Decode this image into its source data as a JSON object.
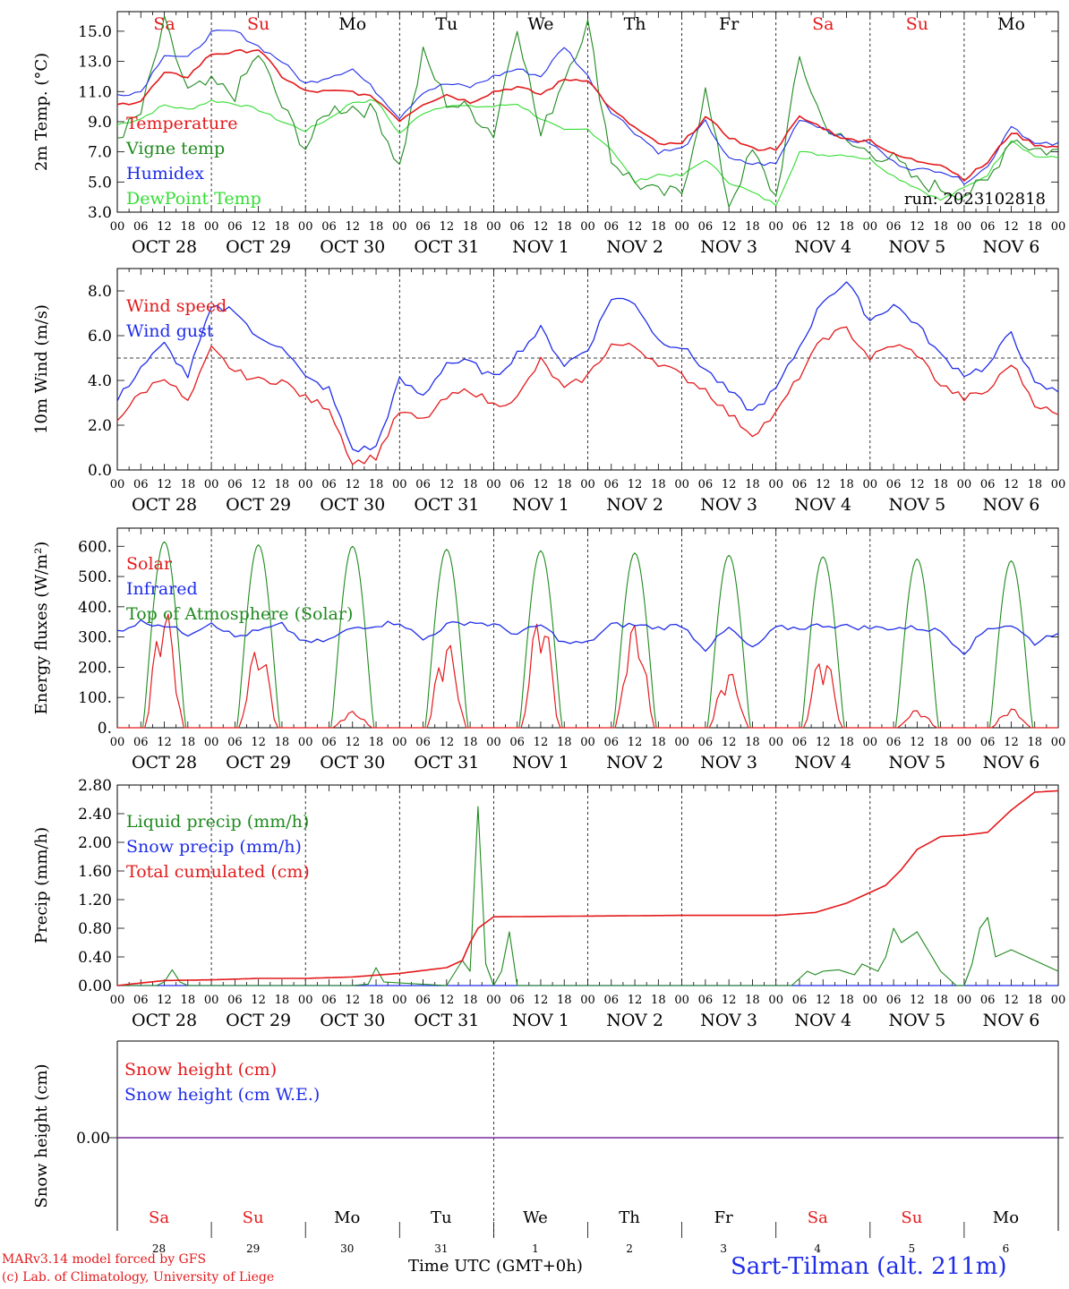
{
  "colors": {
    "red": "#e31a1c",
    "darkgreen": "#1f8a1f",
    "blue": "#1f2de8",
    "lightgreen": "#33dd33",
    "purple": "#7a2a9a",
    "black": "#000000"
  },
  "days": [
    {
      "weekday": "Sa",
      "date": "OCT 28",
      "daynum": "28",
      "weekend": true
    },
    {
      "weekday": "Su",
      "date": "OCT 29",
      "daynum": "29",
      "weekend": true
    },
    {
      "weekday": "Mo",
      "date": "OCT 30",
      "daynum": "30",
      "weekend": false
    },
    {
      "weekday": "Tu",
      "date": "OCT 31",
      "daynum": "31",
      "weekend": false
    },
    {
      "weekday": "We",
      "date": "NOV  1",
      "daynum": "1",
      "weekend": false
    },
    {
      "weekday": "Th",
      "date": "NOV  2",
      "daynum": "2",
      "weekend": false
    },
    {
      "weekday": "Fr",
      "date": "NOV  3",
      "daynum": "3",
      "weekend": false
    },
    {
      "weekday": "Sa",
      "date": "NOV  4",
      "daynum": "4",
      "weekend": true
    },
    {
      "weekday": "Su",
      "date": "NOV  5",
      "daynum": "5",
      "weekend": true
    },
    {
      "weekday": "Mo",
      "date": "NOV  6",
      "daynum": "6",
      "weekend": false
    }
  ],
  "hour_labels": [
    "00",
    "06",
    "12",
    "18"
  ],
  "footer": {
    "model": "MARv3.14 model forced by GFS",
    "credit": "(c) Lab. of Climatology, University of Liege",
    "xlabel": "Time UTC (GMT+0h)",
    "location": "Sart-Tilman (alt. 211m)"
  },
  "chart_data": [
    {
      "type": "line",
      "ylabel": "2m Temp. (°C)",
      "ylim": [
        3.0,
        16.3
      ],
      "yticks": [
        "3.0",
        "5.0",
        "7.0",
        "9.0",
        "11.0",
        "13.0",
        "15.0"
      ],
      "ytick_values": [
        3,
        5,
        7,
        9,
        11,
        13,
        15
      ],
      "annotation": "run: 2023102818",
      "x_unit": "hours since 2023-10-28 00 UTC",
      "x": [
        0,
        6,
        12,
        18,
        24,
        30,
        36,
        42,
        48,
        54,
        60,
        66,
        72,
        78,
        84,
        90,
        96,
        102,
        108,
        114,
        120,
        126,
        132,
        138,
        144,
        150,
        156,
        162,
        168,
        174,
        180,
        186,
        192,
        198,
        204,
        210,
        216,
        222,
        228,
        234,
        240
      ],
      "series": [
        {
          "name": "Temperature",
          "color": "red",
          "values": [
            10.1,
            10.4,
            12.2,
            12.0,
            13.5,
            13.6,
            13.8,
            12.0,
            11.0,
            11.0,
            11.0,
            10.5,
            9.1,
            10.2,
            10.8,
            10.3,
            11.0,
            11.3,
            10.8,
            11.8,
            11.8,
            9.8,
            8.6,
            7.5,
            7.5,
            9.3,
            8.0,
            7.2,
            7.2,
            9.3,
            8.6,
            7.8,
            7.8,
            6.8,
            6.4,
            6.2,
            5.2,
            6.3,
            8.3,
            7.5,
            7.3
          ]
        },
        {
          "name": "Vigne temp",
          "color": "darkgreen",
          "values": [
            8.0,
            9.5,
            15.5,
            11.0,
            11.5,
            10.8,
            13.5,
            10.0,
            7.3,
            9.8,
            10.0,
            9.6,
            6.0,
            13.5,
            10.3,
            9.8,
            8.2,
            15.5,
            8.0,
            12.0,
            15.5,
            6.5,
            5.0,
            4.2,
            4.3,
            11.0,
            3.5,
            7.0,
            4.0,
            13.2,
            9.0,
            7.5,
            7.0,
            6.5,
            5.0,
            4.6,
            4.2,
            5.0,
            8.0,
            7.2,
            7.0
          ]
        },
        {
          "name": "Humidex",
          "color": "blue",
          "values": [
            10.8,
            11.0,
            13.5,
            13.2,
            14.9,
            15.0,
            14.0,
            13.0,
            11.5,
            12.0,
            12.5,
            11.0,
            9.3,
            11.0,
            11.5,
            11.3,
            12.0,
            12.5,
            12.0,
            14.0,
            12.0,
            9.7,
            8.3,
            7.0,
            7.2,
            9.0,
            6.5,
            6.2,
            6.2,
            9.2,
            8.6,
            7.8,
            7.6,
            6.3,
            5.8,
            5.8,
            5.0,
            6.0,
            8.8,
            7.5,
            7.5
          ]
        },
        {
          "name": "DewPoint Temp",
          "color": "lightgreen",
          "values": [
            8.8,
            9.2,
            10.1,
            9.8,
            10.4,
            10.2,
            9.8,
            9.0,
            8.4,
            9.2,
            10.3,
            10.4,
            8.2,
            9.6,
            10.1,
            10.0,
            10.0,
            10.2,
            9.2,
            8.4,
            8.5,
            7.2,
            5.0,
            5.5,
            5.4,
            6.5,
            5.0,
            4.3,
            3.5,
            7.0,
            6.8,
            6.8,
            6.5,
            5.4,
            4.6,
            3.8,
            4.6,
            5.5,
            7.8,
            6.7,
            6.6
          ]
        }
      ]
    },
    {
      "type": "line",
      "ylabel": "10m Wind (m/s)",
      "ylim": [
        0,
        9.0
      ],
      "yticks": [
        "0.0",
        "2.0",
        "4.0",
        "6.0",
        "8.0"
      ],
      "ytick_values": [
        0,
        2,
        4,
        6,
        8
      ],
      "reference_line": 5.0,
      "x_unit": "hours since 2023-10-28 00 UTC",
      "x": [
        0,
        6,
        12,
        18,
        24,
        30,
        36,
        42,
        48,
        54,
        60,
        66,
        72,
        78,
        84,
        90,
        96,
        102,
        108,
        114,
        120,
        126,
        132,
        138,
        144,
        150,
        156,
        162,
        168,
        174,
        180,
        186,
        192,
        198,
        204,
        210,
        216,
        222,
        228,
        234,
        240
      ],
      "series": [
        {
          "name": "Wind speed",
          "color": "red",
          "values": [
            2.3,
            3.4,
            4.2,
            3.0,
            5.4,
            4.4,
            4.0,
            4.0,
            3.2,
            2.8,
            0.3,
            0.6,
            2.6,
            2.2,
            3.2,
            3.6,
            2.9,
            3.2,
            4.9,
            3.6,
            4.2,
            5.6,
            5.5,
            4.8,
            4.2,
            3.6,
            2.5,
            1.6,
            2.5,
            4.2,
            5.9,
            6.3,
            5.0,
            5.6,
            5.2,
            3.8,
            3.2,
            3.5,
            4.8,
            3.0,
            2.4
          ]
        },
        {
          "name": "Wind gust",
          "color": "blue",
          "values": [
            3.1,
            4.6,
            5.6,
            4.2,
            7.2,
            7.2,
            5.8,
            5.6,
            4.1,
            3.6,
            0.9,
            1.0,
            4.0,
            3.3,
            4.8,
            4.8,
            4.1,
            5.2,
            6.3,
            4.7,
            5.4,
            7.7,
            7.5,
            5.8,
            5.5,
            4.5,
            3.5,
            2.6,
            3.6,
            5.5,
            7.6,
            8.4,
            6.7,
            7.4,
            6.5,
            5.1,
            4.3,
            4.6,
            6.2,
            3.8,
            3.5
          ]
        }
      ]
    },
    {
      "type": "line",
      "ylabel": "Energy fluxes (W/m²)",
      "ylim": [
        0,
        660
      ],
      "yticks": [
        "0.",
        "100.",
        "200.",
        "300.",
        "400.",
        "500.",
        "600."
      ],
      "ytick_values": [
        0,
        100,
        200,
        300,
        400,
        500,
        600
      ],
      "x_unit": "hours since 2023-10-28 00 UTC",
      "solar_peaks": [
        400,
        275,
        55,
        290,
        390,
        350,
        190,
        250,
        60,
        65
      ],
      "toa_peaks": [
        615,
        605,
        600,
        590,
        585,
        578,
        570,
        565,
        558,
        552
      ],
      "ir": {
        "x": [
          0,
          6,
          12,
          18,
          24,
          30,
          36,
          42,
          48,
          54,
          60,
          66,
          72,
          78,
          84,
          90,
          96,
          102,
          108,
          114,
          120,
          126,
          132,
          138,
          144,
          150,
          156,
          162,
          168,
          174,
          180,
          186,
          192,
          198,
          204,
          210,
          216,
          222,
          228,
          234,
          240
        ],
        "values": [
          320,
          350,
          340,
          310,
          350,
          300,
          320,
          340,
          280,
          290,
          330,
          340,
          350,
          290,
          340,
          350,
          340,
          310,
          340,
          280,
          280,
          340,
          340,
          330,
          340,
          260,
          330,
          260,
          330,
          330,
          340,
          335,
          330,
          330,
          330,
          320,
          250,
          330,
          340,
          280,
          320
        ]
      },
      "series": [
        {
          "name": "Solar",
          "color": "red"
        },
        {
          "name": "Infrared",
          "color": "blue"
        },
        {
          "name": "Top of Atmosphere (Solar)",
          "color": "darkgreen"
        }
      ]
    },
    {
      "type": "line",
      "ylabel": "Precip (mm/h)",
      "ylim": [
        0,
        2.8
      ],
      "yticks": [
        "0.00",
        "0.40",
        "0.80",
        "1.20",
        "1.60",
        "2.00",
        "2.40",
        "2.80"
      ],
      "ytick_values": [
        0,
        0.4,
        0.8,
        1.2,
        1.6,
        2.0,
        2.4,
        2.8
      ],
      "x_unit": "hours since 2023-10-28 00 UTC",
      "liquid": {
        "x": [
          0,
          10,
          12,
          14,
          16,
          18,
          24,
          60,
          64,
          66,
          68,
          84,
          88,
          90,
          92,
          94,
          96,
          98,
          100,
          102,
          172,
          174,
          176,
          178,
          180,
          184,
          188,
          190,
          194,
          196,
          198,
          200,
          204,
          210,
          214,
          216,
          218,
          220,
          222,
          224,
          228,
          232,
          240
        ],
        "values": [
          0,
          0,
          0.05,
          0.22,
          0.05,
          0,
          0,
          0,
          0.02,
          0.25,
          0.05,
          0,
          0.35,
          0.2,
          2.5,
          0.3,
          0,
          0.2,
          0.75,
          0,
          0,
          0.1,
          0.2,
          0.15,
          0.2,
          0.22,
          0.15,
          0.3,
          0.2,
          0.4,
          0.8,
          0.6,
          0.75,
          0.2,
          0,
          0,
          0.3,
          0.8,
          0.95,
          0.4,
          0.5,
          0.4,
          0.2
        ]
      },
      "cumulated": {
        "x": [
          0,
          12,
          24,
          36,
          48,
          60,
          72,
          84,
          86,
          88,
          90,
          92,
          94,
          96,
          120,
          144,
          168,
          178,
          186,
          192,
          196,
          200,
          204,
          210,
          216,
          222,
          228,
          234,
          240
        ],
        "values": [
          0,
          0.07,
          0.08,
          0.1,
          0.1,
          0.12,
          0.17,
          0.25,
          0.3,
          0.35,
          0.6,
          0.8,
          0.88,
          0.96,
          0.97,
          0.98,
          0.98,
          1.02,
          1.15,
          1.3,
          1.4,
          1.62,
          1.9,
          2.08,
          2.1,
          2.14,
          2.45,
          2.7,
          2.72
        ]
      },
      "series": [
        {
          "name": "Liquid precip (mm/h)",
          "color": "darkgreen"
        },
        {
          "name": "Snow precip (mm/h)",
          "color": "blue"
        },
        {
          "name": "Total cumulated (cm)",
          "color": "red"
        }
      ]
    },
    {
      "type": "line",
      "ylabel": "Snow height (cm)",
      "yticks": [
        "0.00"
      ],
      "ytick_values": [
        0
      ],
      "x_unit": "hours since 2023-10-28 00 UTC",
      "x": [
        0,
        240
      ],
      "values": [
        0,
        0
      ],
      "series": [
        {
          "name": "Snow height (cm)",
          "color": "red"
        },
        {
          "name": "Snow height (cm W.E.)",
          "color": "blue"
        }
      ]
    }
  ]
}
